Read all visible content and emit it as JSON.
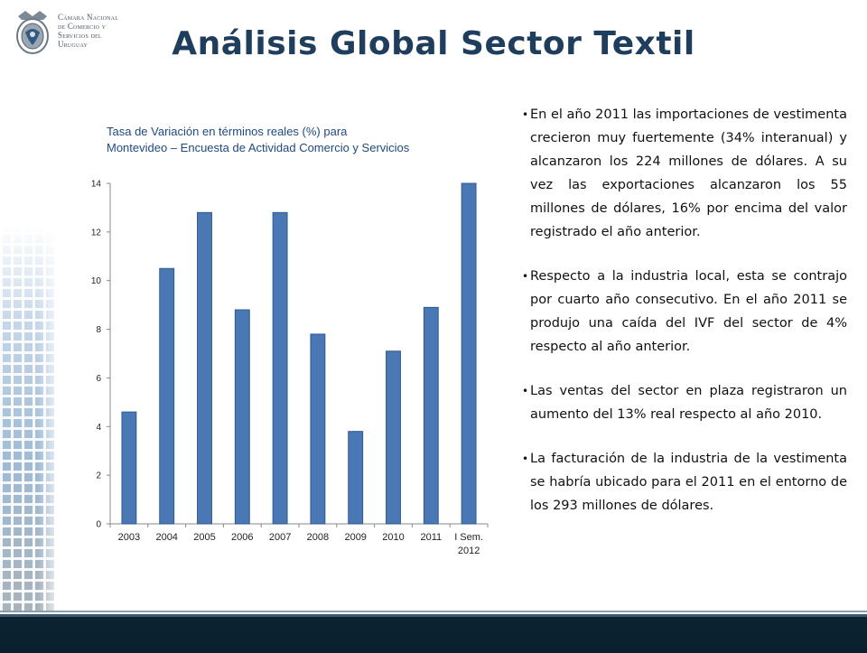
{
  "header": {
    "logo_lines": [
      "Cámara Nacional",
      "de Comercio y",
      "Servicios del",
      "Uruguay"
    ],
    "title": "Análisis Global Sector Textil"
  },
  "chart_caption": {
    "line1": "Tasa de Variación en términos reales  (%) para",
    "line2": "Montevideo – Encuesta de Actividad Comercio y Servicios"
  },
  "chart_data": {
    "type": "bar",
    "title": "Tasa de Variación en términos reales  (%) para Montevideo – Encuesta de Actividad Comercio y Servicios",
    "categories": [
      "2003",
      "2004",
      "2005",
      "2006",
      "2007",
      "2008",
      "2009",
      "2010",
      "2011",
      "I Sem. 2012"
    ],
    "values": [
      4.6,
      10.5,
      12.8,
      8.8,
      12.8,
      7.8,
      3.8,
      7.1,
      8.9,
      14.0
    ],
    "ylim": [
      0,
      14
    ],
    "yticks": [
      "0",
      "2",
      "4",
      "6",
      "8",
      "10",
      "12",
      "14"
    ],
    "xlabel": "",
    "ylabel": "",
    "grid": false,
    "legend": "none",
    "bar_color": "#4a78b5",
    "bar_edge_color": "#2e5a8f"
  },
  "bullets": [
    "En el año 2011 las importaciones de vestimenta crecieron muy fuertemente (34% interanual) y alcanzaron los 224 millones de dólares. A su vez las exportaciones alcanzaron los 55 millones de dólares, 16% por encima del valor registrado  el  año anterior.",
    "Respecto a la industria local, esta se contrajo por cuarto año consecutivo. En el año 2011 se produjo una caída del IVF del sector de 4% respecto al año anterior.",
    "Las ventas del sector en plaza registraron un aumento del 13% real respecto al año 2010.",
    "La facturación de la industria de la vestimenta se habría ubicado para el 2011 en el entorno de los 293 millones de dólares."
  ],
  "colors": {
    "title": "#1f3d5c",
    "caption": "#1f497d",
    "footer": "#0d2333"
  }
}
